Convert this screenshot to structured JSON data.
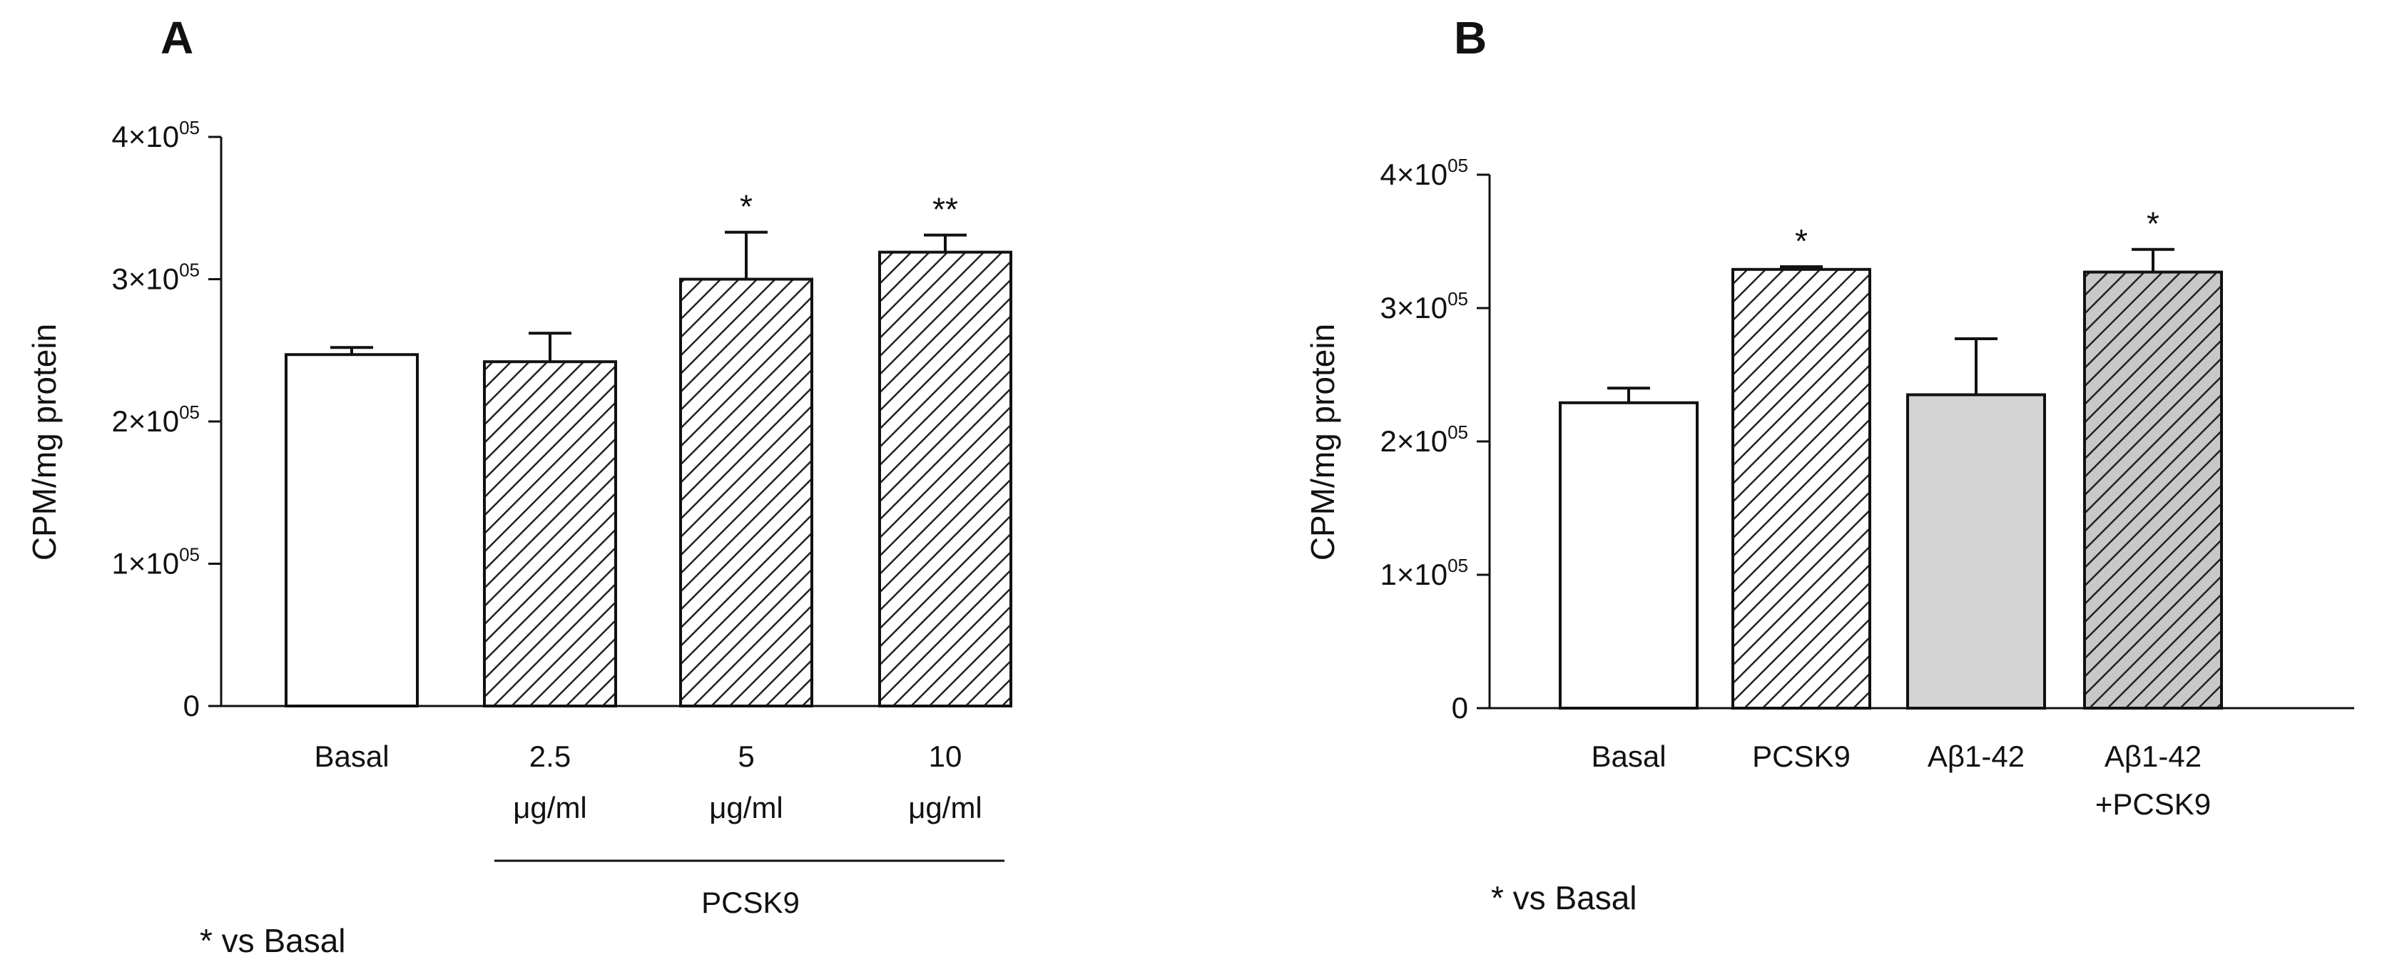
{
  "chart_data": [
    {
      "panel": "A",
      "type": "bar",
      "ylabel": "CPM/mg protein",
      "ylim": [
        0,
        400000
      ],
      "yticks": [
        {
          "value": 0,
          "mantissa": "0",
          "sup": ""
        },
        {
          "value": 100000,
          "mantissa": "1×10",
          "sup": "05"
        },
        {
          "value": 200000,
          "mantissa": "2×10",
          "sup": "05"
        },
        {
          "value": 300000,
          "mantissa": "3×10",
          "sup": "05"
        },
        {
          "value": 400000,
          "mantissa": "4×10",
          "sup": "05"
        }
      ],
      "categories": [
        {
          "lines": [
            "Basal"
          ],
          "value": 247000,
          "error": 5000,
          "fill": "white",
          "sig": ""
        },
        {
          "lines": [
            "2.5",
            "μg/ml"
          ],
          "value": 242000,
          "error": 20000,
          "fill": "hatch",
          "sig": ""
        },
        {
          "lines": [
            "5",
            "μg/ml"
          ],
          "value": 300000,
          "error": 33000,
          "fill": "hatch",
          "sig": "*"
        },
        {
          "lines": [
            "10",
            "μg/ml"
          ],
          "value": 319000,
          "error": 12000,
          "fill": "hatch",
          "sig": "**"
        }
      ],
      "group_label": "PCSK9",
      "note": "* vs Basal"
    },
    {
      "panel": "B",
      "type": "bar",
      "ylabel": "CPM/mg protein",
      "ylim": [
        0,
        400000
      ],
      "yticks": [
        {
          "value": 0,
          "mantissa": "0",
          "sup": ""
        },
        {
          "value": 100000,
          "mantissa": "1×10",
          "sup": "05"
        },
        {
          "value": 200000,
          "mantissa": "2×10",
          "sup": "05"
        },
        {
          "value": 300000,
          "mantissa": "3×10",
          "sup": "05"
        },
        {
          "value": 400000,
          "mantissa": "4×10",
          "sup": "05"
        }
      ],
      "categories": [
        {
          "lines": [
            "Basal"
          ],
          "value": 229000,
          "error": 11000,
          "fill": "white",
          "sig": ""
        },
        {
          "lines": [
            "PCSK9"
          ],
          "value": 329000,
          "error": 2000,
          "fill": "hatch",
          "sig": "*"
        },
        {
          "lines": [
            "Aβ1-42"
          ],
          "value": 235000,
          "error": 42000,
          "fill": "gray",
          "sig": ""
        },
        {
          "lines": [
            "Aβ1-42",
            "+PCSK9"
          ],
          "value": 327000,
          "error": 17000,
          "fill": "gray-hatch",
          "sig": "*"
        }
      ],
      "note": "* vs Basal"
    }
  ]
}
